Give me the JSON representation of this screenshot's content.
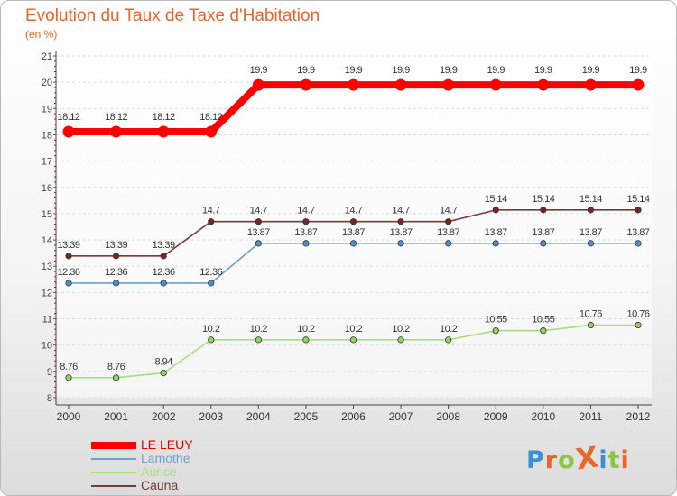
{
  "title": "Evolution du Taux de Taxe d'Habitation",
  "unit": "(en %)",
  "brand": "ProXiti",
  "chart_data": {
    "type": "line",
    "categories": [
      "2000",
      "2001",
      "2002",
      "2003",
      "2004",
      "2005",
      "2006",
      "2007",
      "2008",
      "2009",
      "2010",
      "2011",
      "2012"
    ],
    "ylim": [
      8,
      21
    ],
    "yticks": [
      8,
      9,
      10,
      11,
      12,
      13,
      14,
      15,
      16,
      17,
      18,
      19,
      20,
      21
    ],
    "grid": "horizontal",
    "legend_position": "bottom-left",
    "series": [
      {
        "name": "LE LEUY",
        "color": "#ff0000",
        "emphasis": true,
        "values": [
          18.12,
          18.12,
          18.12,
          18.12,
          19.9,
          19.9,
          19.9,
          19.9,
          19.9,
          19.9,
          19.9,
          19.9,
          19.9
        ],
        "labels": [
          "18.12",
          "18.12",
          "18.12",
          "18.12",
          "19.9",
          "19.9",
          "19.9",
          "19.9",
          "19.9",
          "19.9",
          "19.9",
          "19.9",
          "19.9"
        ]
      },
      {
        "name": "Lamothe",
        "color": "#6fa0cb",
        "marker_color": "#4a90d9",
        "values": [
          12.36,
          12.36,
          12.36,
          12.36,
          13.87,
          13.87,
          13.87,
          13.87,
          13.87,
          13.87,
          13.87,
          13.87,
          13.87
        ],
        "labels": [
          "12.36",
          "12.36",
          "12.36",
          "12.36",
          "13.87",
          "13.87",
          "13.87",
          "13.87",
          "13.87",
          "13.87",
          "13.87",
          "13.87",
          "13.87"
        ]
      },
      {
        "name": "Aurice",
        "color": "#a8dc80",
        "marker_color": "#8ed65a",
        "values": [
          8.76,
          8.76,
          8.94,
          10.2,
          10.2,
          10.2,
          10.2,
          10.2,
          10.2,
          10.55,
          10.55,
          10.76,
          10.76
        ],
        "labels": [
          "8.76",
          "8.76",
          "8.94",
          "10.2",
          "10.2",
          "10.2",
          "10.2",
          "10.2",
          "10.2",
          "10.55",
          "10.55",
          "10.76",
          "10.76"
        ]
      },
      {
        "name": "Cauna",
        "color": "#7a3838",
        "marker_color": "#7a2424",
        "values": [
          13.39,
          13.39,
          13.39,
          14.7,
          14.7,
          14.7,
          14.7,
          14.7,
          14.7,
          15.14,
          15.14,
          15.14,
          15.14
        ],
        "labels": [
          "13.39",
          "13.39",
          "13.39",
          "14.7",
          "14.7",
          "14.7",
          "14.7",
          "14.7",
          "14.7",
          "15.14",
          "15.14",
          "15.14",
          "15.14"
        ]
      }
    ]
  },
  "brand_colors": [
    "#3b8fd8",
    "#e8662a",
    "#8cc63f",
    "#e8662a",
    "#3b8fd8",
    "#8cc63f",
    "#e8662a"
  ]
}
